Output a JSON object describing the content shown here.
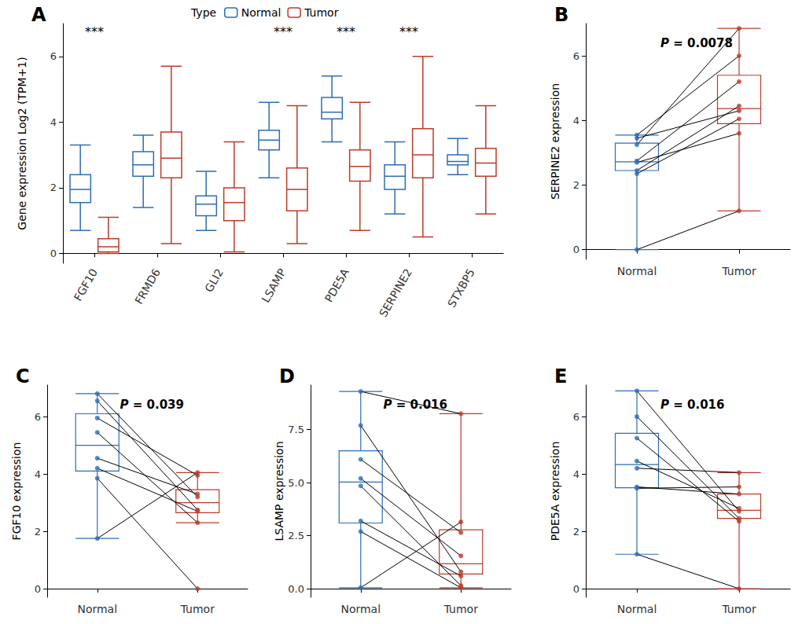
{
  "chart_data": [
    {
      "type": "boxplot",
      "title": "A",
      "y_label": "Gene expression Log2 (TPM+1)",
      "categories": [
        "FGF10",
        "FRMD6",
        "GLI2",
        "LSAMP",
        "PDE5A",
        "SERPINE2",
        "STXBP5"
      ],
      "legend_title": "Type",
      "legend": "top",
      "series": [
        {
          "name": "Normal",
          "color": "#2E6DB4",
          "boxes": [
            [
              0.7,
              1.55,
              1.95,
              2.4,
              3.3
            ],
            [
              1.4,
              2.35,
              2.7,
              3.1,
              3.6
            ],
            [
              0.7,
              1.15,
              1.5,
              1.75,
              2.5
            ],
            [
              2.3,
              3.15,
              3.45,
              3.75,
              4.6
            ],
            [
              3.4,
              4.1,
              4.3,
              4.75,
              5.4
            ],
            [
              1.2,
              1.95,
              2.35,
              2.7,
              3.4
            ],
            [
              2.4,
              2.7,
              2.8,
              3.0,
              3.5
            ]
          ]
        },
        {
          "name": "Tumor",
          "color": "#BC3C29",
          "boxes": [
            [
              0,
              0.05,
              0.2,
              0.45,
              1.1
            ],
            [
              0.3,
              2.3,
              2.9,
              3.7,
              5.7
            ],
            [
              0.05,
              1.0,
              1.55,
              2.0,
              3.4
            ],
            [
              0.3,
              1.3,
              1.95,
              2.6,
              4.5
            ],
            [
              0.7,
              2.2,
              2.65,
              3.15,
              4.6
            ],
            [
              0.5,
              2.3,
              3.0,
              3.8,
              6.0
            ],
            [
              1.2,
              2.35,
              2.75,
              3.2,
              4.5
            ]
          ]
        }
      ],
      "annotations": [
        {
          "category": "FGF10",
          "text": "***"
        },
        {
          "category": "LSAMP",
          "text": "***"
        },
        {
          "category": "PDE5A",
          "text": "***"
        },
        {
          "category": "SERPINE2",
          "text": "***"
        }
      ],
      "ylim": [
        -0.3,
        7
      ],
      "yticks": [
        0,
        2,
        4,
        6
      ],
      "grid": false
    },
    {
      "type": "paired",
      "title": "B",
      "y_label": "SERPINE2 expression",
      "categories": [
        "Normal",
        "Tumor"
      ],
      "colors": [
        "#2E6DB4",
        "#BC3C29"
      ],
      "boxes": [
        [
          0,
          2.45,
          2.72,
          3.3,
          3.55
        ],
        [
          1.2,
          3.9,
          4.37,
          5.4,
          6.85
        ]
      ],
      "pairs": [
        [
          0,
          1.2
        ],
        [
          2.35,
          4.05
        ],
        [
          2.45,
          4.45
        ],
        [
          2.7,
          3.6
        ],
        [
          2.75,
          5.2
        ],
        [
          3.25,
          6.85
        ],
        [
          3.45,
          4.3
        ],
        [
          3.55,
          6.0
        ]
      ],
      "annotation": "P = 0.0078",
      "ylim": [
        -0.3,
        7
      ],
      "yticks": [
        0,
        2,
        4,
        6
      ],
      "grid": false
    },
    {
      "type": "paired",
      "title": "C",
      "y_label": "FGF10 expression",
      "categories": [
        "Normal",
        "Tumor"
      ],
      "colors": [
        "#2E6DB4",
        "#BC3C29"
      ],
      "boxes": [
        [
          1.75,
          4.1,
          5.0,
          6.1,
          6.8
        ],
        [
          2.3,
          2.65,
          3.0,
          3.45,
          4.05
        ]
      ],
      "pairs": [
        [
          6.8,
          3.2
        ],
        [
          6.55,
          2.75
        ],
        [
          5.95,
          3.95
        ],
        [
          5.45,
          2.3
        ],
        [
          4.55,
          3.3
        ],
        [
          4.2,
          2.7
        ],
        [
          3.85,
          0
        ],
        [
          1.75,
          4.05
        ]
      ],
      "annotation": "P = 0.039",
      "ylim": [
        -0.3,
        7.1
      ],
      "yticks": [
        0,
        2,
        4,
        6
      ],
      "grid": false
    },
    {
      "type": "paired",
      "title": "D",
      "y_label": "LSAMP expression",
      "categories": [
        "Normal",
        "Tumor"
      ],
      "colors": [
        "#2E6DB4",
        "#BC3C29"
      ],
      "boxes": [
        [
          0.05,
          3.1,
          5.03,
          6.5,
          9.3
        ],
        [
          0.05,
          0.7,
          1.18,
          2.78,
          8.25
        ]
      ],
      "pairs": [
        [
          9.3,
          8.25
        ],
        [
          7.7,
          0.8
        ],
        [
          6.1,
          2.65
        ],
        [
          5.2,
          1.55
        ],
        [
          4.85,
          0.15
        ],
        [
          3.2,
          0.6
        ],
        [
          2.7,
          0.05
        ],
        [
          0.05,
          3.15
        ]
      ],
      "annotation": "P = 0.016",
      "ylim": [
        -0.4,
        9.6
      ],
      "yticks": [
        {
          "value": 0,
          "label": "0.0"
        },
        {
          "value": 2.5,
          "label": "2.5"
        },
        {
          "value": 5,
          "label": "5.0"
        },
        {
          "value": 7.5,
          "label": "7.5"
        }
      ],
      "grid": false
    },
    {
      "type": "paired",
      "title": "E",
      "y_label": "PDE5A expression",
      "categories": [
        "Normal",
        "Tumor"
      ],
      "colors": [
        "#2E6DB4",
        "#BC3C29"
      ],
      "boxes": [
        [
          1.2,
          3.52,
          4.33,
          5.42,
          6.9
        ],
        [
          0,
          2.45,
          2.73,
          3.3,
          4.05
        ]
      ],
      "pairs": [
        [
          6.9,
          2.7
        ],
        [
          6.0,
          2.45
        ],
        [
          5.25,
          2.35
        ],
        [
          4.45,
          2.8
        ],
        [
          4.2,
          4.05
        ],
        [
          3.55,
          3.3
        ],
        [
          3.5,
          3.55
        ],
        [
          1.2,
          0
        ]
      ],
      "annotation": "P = 0.016",
      "ylim": [
        -0.3,
        7.1
      ],
      "yticks": [
        0,
        2,
        4,
        6
      ],
      "grid": false
    }
  ]
}
